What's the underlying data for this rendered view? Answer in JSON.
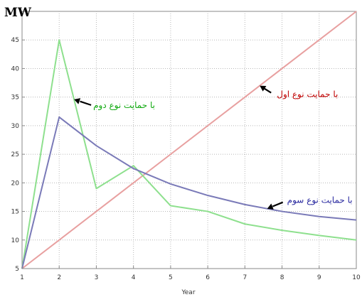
{
  "chart_data": {
    "type": "line",
    "unit_label": "MW",
    "xlabel": "Year",
    "ylabel": "",
    "x": [
      1,
      2,
      3,
      4,
      5,
      6,
      7,
      8,
      9,
      10
    ],
    "xlim": [
      1,
      10
    ],
    "ylim": [
      5,
      50
    ],
    "xticks": [
      1,
      2,
      3,
      4,
      5,
      6,
      7,
      8,
      9,
      10
    ],
    "yticks": [
      5,
      10,
      15,
      20,
      25,
      30,
      35,
      40,
      45
    ],
    "grid": true,
    "series": [
      {
        "key": "type1",
        "color": "#e8a0a0",
        "values": [
          5,
          10,
          15,
          20,
          25,
          30,
          35,
          40,
          45,
          50
        ],
        "annotation": "با حمایت نوع اول",
        "annotation_color": "#c00000"
      },
      {
        "key": "type2",
        "color": "#8ee08e",
        "values": [
          5,
          45,
          19,
          23,
          16,
          15,
          12.8,
          11.7,
          10.8,
          10
        ],
        "annotation": "با حمایت نوع دوم",
        "annotation_color": "#11aa11"
      },
      {
        "key": "type3",
        "color": "#7a7ab8",
        "values": [
          5,
          31.5,
          26.5,
          22.5,
          19.8,
          17.8,
          16.2,
          15.0,
          14.1,
          13.5
        ],
        "annotation": "با حمایت نوع سوم",
        "annotation_color": "#2a2aa0"
      }
    ]
  }
}
